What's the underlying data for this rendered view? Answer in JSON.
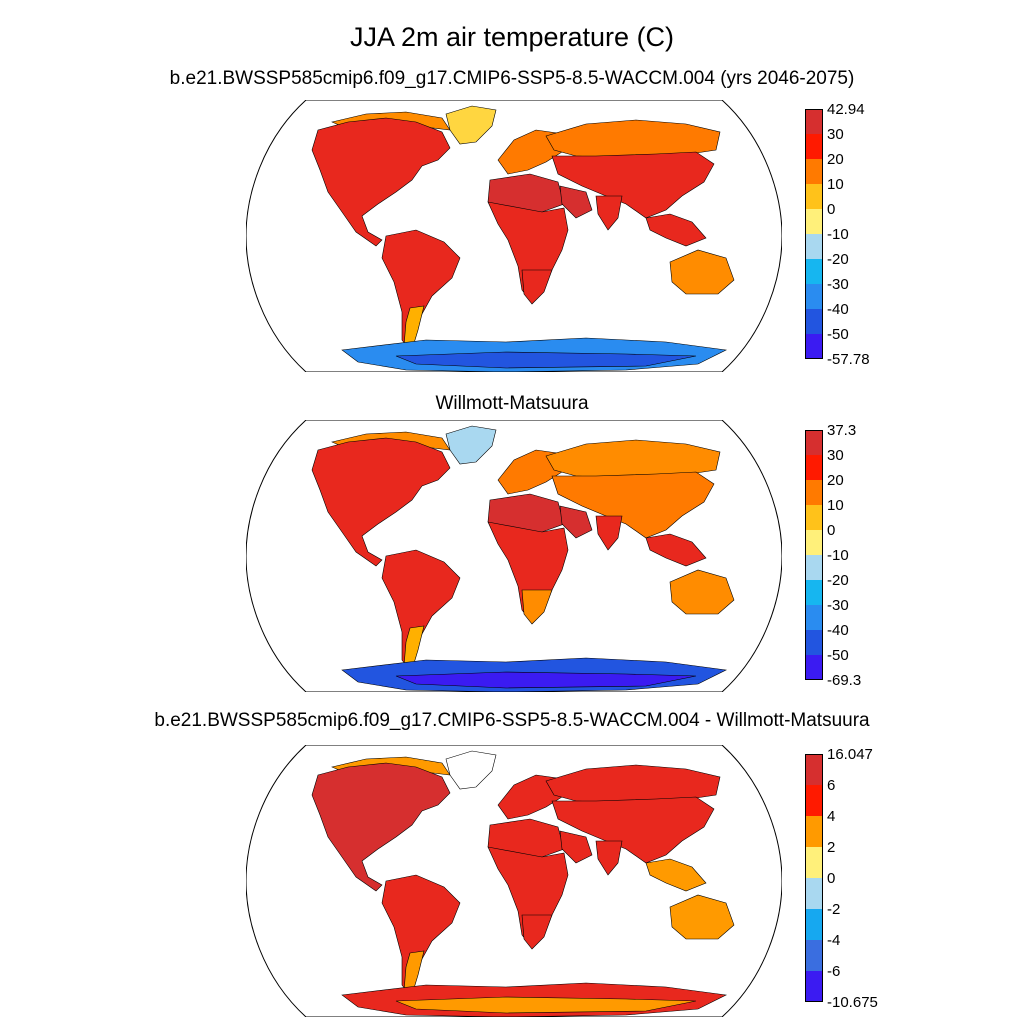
{
  "title": "JJA 2m air temperature (C)",
  "panels": [
    {
      "subtitle": "b.e21.BWSSP585cmip6.f09_g17.CMIP6-SSP5-8.5-WACCM.004 (yrs 2046-2075)",
      "colorbar": {
        "labels": [
          "42.94",
          "30",
          "20",
          "10",
          "0",
          "-10",
          "-20",
          "-30",
          "-40",
          "-50",
          "-57.78"
        ],
        "colors": [
          "#d62f2f",
          "#ff1a00",
          "#ff7a00",
          "#ffc21a",
          "#fff07a",
          "#a9d8f0",
          "#16b6f0",
          "#2a8cf0",
          "#2255e0",
          "#3b1bf2"
        ]
      },
      "regions": {
        "north_america": "#e8281e",
        "greenland": "#ffd640",
        "canada_arctic": "#ff8c00",
        "south_america": "#e8281e",
        "patagonia": "#ffb000",
        "europe": "#ff7a00",
        "siberia": "#ff7a00",
        "asia": "#e8281e",
        "sahara": "#d62f2f",
        "africa": "#e8281e",
        "africa_south": "#e8281e",
        "arabia": "#d62f2f",
        "india": "#e8281e",
        "southeast_asia": "#e8281e",
        "australia": "#ff8c00",
        "antarctica": "#2a8cf0",
        "antarctica_inner": "#2255e0"
      }
    },
    {
      "subtitle": "Willmott-Matsuura",
      "colorbar": {
        "labels": [
          "37.3",
          "30",
          "20",
          "10",
          "0",
          "-10",
          "-20",
          "-30",
          "-40",
          "-50",
          "-69.3"
        ],
        "colors": [
          "#d62f2f",
          "#ff1a00",
          "#ff7a00",
          "#ffc21a",
          "#fff07a",
          "#a9d8f0",
          "#16b6f0",
          "#2a8cf0",
          "#2255e0",
          "#3b1bf2"
        ]
      },
      "regions": {
        "north_america": "#e8281e",
        "greenland": "#a9d8f0",
        "canada_arctic": "#ff8c00",
        "south_america": "#e8281e",
        "patagonia": "#ffb000",
        "europe": "#ff7a00",
        "siberia": "#ff8c00",
        "asia": "#ff7a00",
        "sahara": "#d62f2f",
        "africa": "#e8281e",
        "africa_south": "#ff8c00",
        "arabia": "#d62f2f",
        "india": "#e8281e",
        "southeast_asia": "#e8281e",
        "australia": "#ff8c00",
        "antarctica": "#2255e0",
        "antarctica_inner": "#3b1bf2"
      }
    },
    {
      "subtitle": "b.e21.BWSSP585cmip6.f09_g17.CMIP6-SSP5-8.5-WACCM.004 - Willmott-Matsuura",
      "colorbar": {
        "labels": [
          "16.047",
          "6",
          "4",
          "2",
          "0",
          "-2",
          "-4",
          "-6",
          "-10.675"
        ],
        "colors": [
          "#d62f2f",
          "#ff1a00",
          "#ff9a00",
          "#fff07a",
          "#a9d8f0",
          "#16a8f0",
          "#3a6ee0",
          "#3b1bf2"
        ]
      },
      "regions": {
        "north_america": "#d62f2f",
        "greenland": "#ffffff",
        "canada_arctic": "#ff9a00",
        "south_america": "#e8281e",
        "patagonia": "#ff9a00",
        "europe": "#e8281e",
        "siberia": "#e8281e",
        "asia": "#e8281e",
        "sahara": "#e8281e",
        "africa": "#e8281e",
        "africa_south": "#e8281e",
        "arabia": "#e8281e",
        "india": "#e8281e",
        "southeast_asia": "#ff9a00",
        "australia": "#ff9a00",
        "antarctica": "#e8281e",
        "antarctica_inner": "#ff9a00"
      }
    }
  ]
}
